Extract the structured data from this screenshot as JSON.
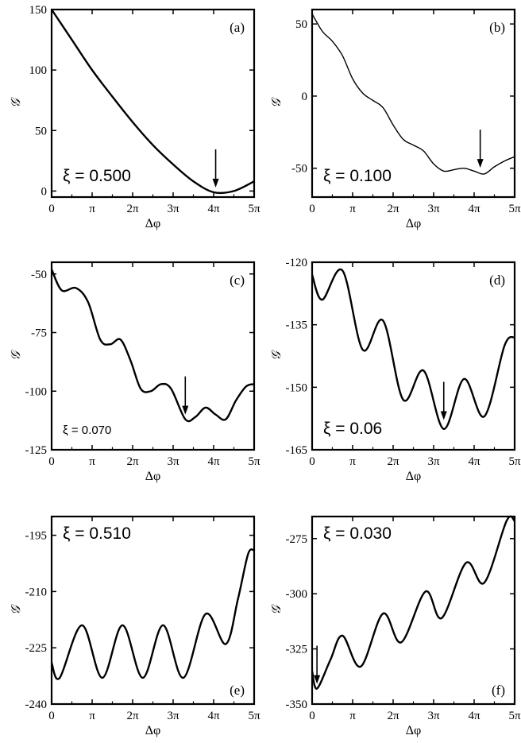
{
  "chart_data": [
    {
      "panel": "(a)",
      "type": "line",
      "xi_label": "ξ = 0.500",
      "xlabel": "Δφ",
      "ylabel": "𝒢",
      "xlim": [
        0,
        5
      ],
      "x_unit": "π",
      "xticks": [
        "0",
        "π",
        "2π",
        "3π",
        "4π",
        "5π"
      ],
      "ylim": [
        -5,
        150
      ],
      "yticks": [
        0,
        50,
        100,
        150
      ],
      "arrow_x": 4.05,
      "arrow_y": -1,
      "series": [
        {
          "x": [
            0,
            0.5,
            1,
            1.5,
            2,
            2.5,
            3,
            3.5,
            4,
            4.5,
            5
          ],
          "y": [
            150,
            125,
            100,
            78,
            57,
            38,
            22,
            8,
            -1,
            0,
            8
          ]
        }
      ]
    },
    {
      "panel": "(b)",
      "type": "line",
      "xi_label": "ξ = 0.100",
      "xlabel": "Δφ",
      "ylabel": "𝒢",
      "xlim": [
        0,
        5
      ],
      "x_unit": "π",
      "xticks": [
        "0",
        "π",
        "2π",
        "3π",
        "4π",
        "5π"
      ],
      "ylim": [
        -70,
        60
      ],
      "yticks": [
        -50,
        0,
        50
      ],
      "arrow_x": 4.15,
      "arrow_y": -53,
      "series": [
        {
          "x": [
            0,
            0.25,
            0.5,
            0.75,
            1,
            1.25,
            1.5,
            1.75,
            2,
            2.25,
            2.5,
            2.75,
            3,
            3.25,
            3.5,
            3.75,
            4,
            4.25,
            4.5,
            4.75,
            5
          ],
          "y": [
            57,
            45,
            38,
            28,
            12,
            2,
            -3,
            -8,
            -20,
            -30,
            -34,
            -38,
            -47,
            -52,
            -51,
            -50,
            -52,
            -54,
            -49,
            -45,
            -42
          ]
        }
      ]
    },
    {
      "panel": "(c)",
      "type": "line",
      "xi_label": "ξ = 0.070",
      "xlabel": "Δφ",
      "ylabel": "𝒢",
      "xlim": [
        0,
        5
      ],
      "x_unit": "π",
      "xticks": [
        "0",
        "π",
        "2π",
        "3π",
        "4π",
        "5π"
      ],
      "ylim": [
        -125,
        -45
      ],
      "yticks": [
        -125,
        -100,
        -75,
        -50
      ],
      "arrow_x": 3.3,
      "arrow_y": -112,
      "series": [
        {
          "x": [
            0,
            0.25,
            0.6,
            0.9,
            1.2,
            1.45,
            1.7,
            1.95,
            2.2,
            2.45,
            2.7,
            2.95,
            3.3,
            3.55,
            3.8,
            4.05,
            4.3,
            4.55,
            4.8,
            5
          ],
          "y": [
            -48,
            -57,
            -56,
            -62,
            -78,
            -80,
            -78,
            -87,
            -99,
            -100,
            -97,
            -99,
            -112,
            -111,
            -107,
            -110,
            -112,
            -104,
            -98,
            -97
          ]
        }
      ]
    },
    {
      "panel": "(d)",
      "type": "line",
      "xi_label": "ξ = 0.06",
      "xlabel": "Δφ",
      "ylabel": "𝒢",
      "xlim": [
        0,
        5
      ],
      "x_unit": "π",
      "xticks": [
        "0",
        "π",
        "2π",
        "3π",
        "4π",
        "5π"
      ],
      "ylim": [
        -165,
        -120
      ],
      "yticks": [
        -165,
        -150,
        -135,
        -120
      ],
      "arrow_x": 3.25,
      "arrow_y": -159,
      "series": [
        {
          "x": [
            0,
            0.25,
            0.75,
            1.25,
            1.75,
            2.25,
            2.75,
            3.25,
            3.75,
            4.25,
            4.75,
            5
          ],
          "y": [
            -123,
            -129,
            -122,
            -141,
            -134,
            -153,
            -146,
            -160,
            -148,
            -157,
            -140,
            -138
          ]
        }
      ]
    },
    {
      "panel": "(e)",
      "type": "line",
      "xi_label": "ξ = 0.510",
      "xlabel": "Δφ",
      "ylabel": "𝒢",
      "xlim": [
        0,
        5
      ],
      "x_unit": "π",
      "xticks": [
        "0",
        "π",
        "2π",
        "3π",
        "4π",
        "5π"
      ],
      "ylim": [
        -240,
        -190
      ],
      "yticks": [
        -240,
        -225,
        -210,
        -195
      ],
      "series": [
        {
          "x": [
            0,
            0.2,
            0.75,
            1.25,
            1.75,
            2.25,
            2.75,
            3.25,
            3.8,
            4.3,
            4.6,
            4.85,
            5
          ],
          "y": [
            -229,
            -233,
            -219,
            -233,
            -219,
            -233,
            -219,
            -233,
            -216,
            -224,
            -212,
            -200,
            -199
          ]
        }
      ]
    },
    {
      "panel": "(f)",
      "type": "line",
      "xi_label": "ξ = 0.030",
      "xlabel": "Δφ",
      "ylabel": "𝒢",
      "xlim": [
        0,
        5
      ],
      "x_unit": "π",
      "xticks": [
        "0",
        "π",
        "2π",
        "3π",
        "4π",
        "5π"
      ],
      "ylim": [
        -350,
        -265
      ],
      "yticks": [
        -350,
        -325,
        -300,
        -275
      ],
      "arrow_x": 0.12,
      "arrow_y": -343,
      "series": [
        {
          "x": [
            0,
            0.12,
            0.45,
            0.75,
            1.2,
            1.75,
            2.2,
            2.8,
            3.2,
            3.8,
            4.25,
            4.8,
            5
          ],
          "y": [
            -335,
            -343,
            -330,
            -319,
            -333,
            -309,
            -322,
            -299,
            -311,
            -286,
            -295,
            -267,
            -267
          ]
        }
      ]
    }
  ]
}
